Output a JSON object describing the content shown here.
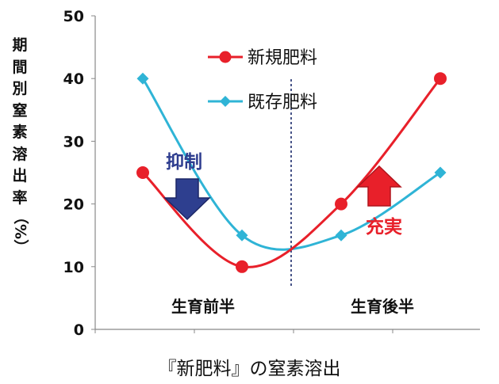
{
  "chart_data": {
    "type": "line",
    "ylabel": "期間別窒素溶出率（%）",
    "ylabel_chars": [
      "期",
      "間",
      "別",
      "窒",
      "素",
      "溶",
      "出",
      "率"
    ],
    "ylabel_unit": "（%）",
    "xlabel": "『新肥料』の窒素溶出",
    "ylim": [
      0,
      50
    ],
    "yticks": [
      "0",
      "10",
      "20",
      "30",
      "40",
      "50"
    ],
    "x": [
      1,
      2,
      3,
      4
    ],
    "series": [
      {
        "name": "新規肥料",
        "color": "#e8202a",
        "marker": "circle",
        "values": [
          25,
          10,
          20,
          40
        ]
      },
      {
        "name": "既存肥料",
        "color": "#2fb4d6",
        "marker": "diamond",
        "values": [
          40,
          15,
          15,
          25
        ]
      }
    ],
    "legend_position": "top-center",
    "regions": [
      "生育前半",
      "生育後半"
    ],
    "annotations": [
      {
        "text": "抑制",
        "color": "#2e3d8f",
        "arrow": "down"
      },
      {
        "text": "充実",
        "color": "#e8202a",
        "arrow": "up"
      }
    ],
    "grid": false
  }
}
